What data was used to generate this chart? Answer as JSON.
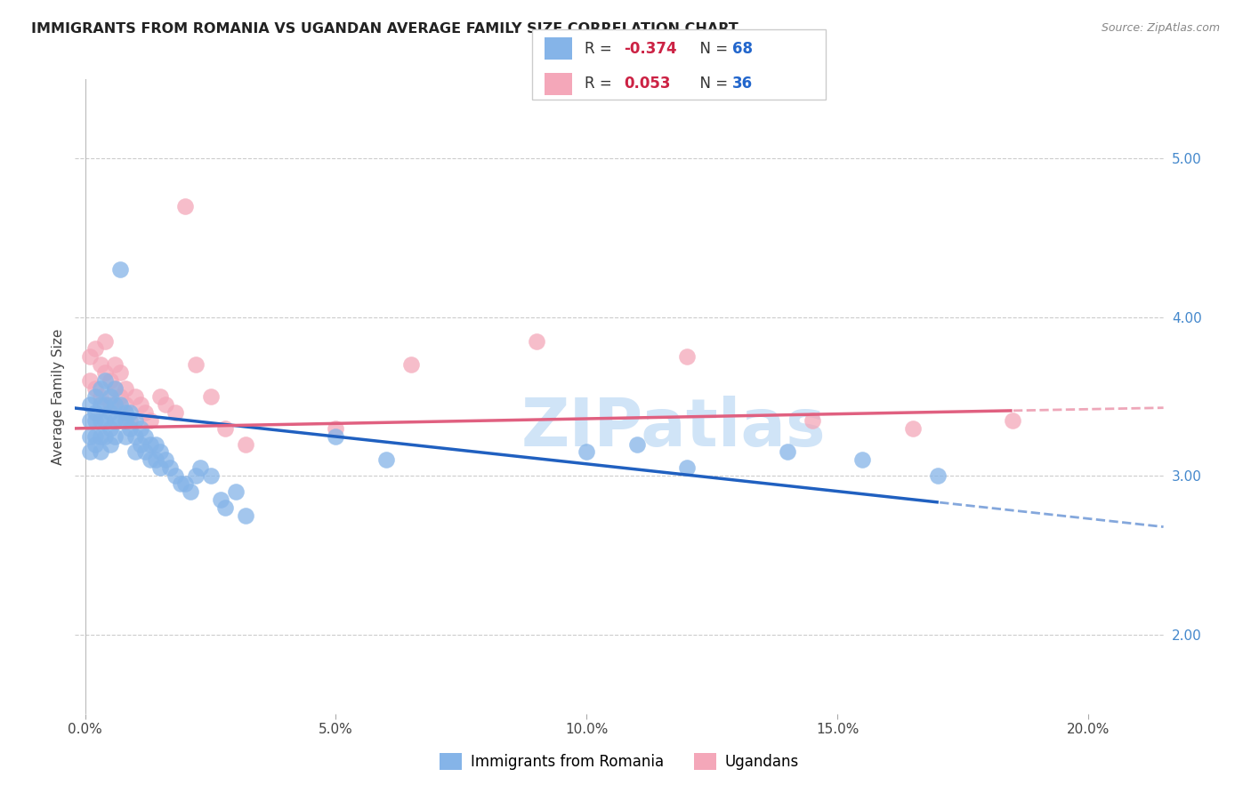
{
  "title": "IMMIGRANTS FROM ROMANIA VS UGANDAN AVERAGE FAMILY SIZE CORRELATION CHART",
  "source": "Source: ZipAtlas.com",
  "ylabel": "Average Family Size",
  "xlabel_ticks": [
    "0.0%",
    "5.0%",
    "10.0%",
    "15.0%",
    "20.0%"
  ],
  "xlabel_vals": [
    0.0,
    0.05,
    0.1,
    0.15,
    0.2
  ],
  "ylabel_ticks_right": [
    "2.00",
    "3.00",
    "4.00",
    "5.00"
  ],
  "ylabel_vals_right": [
    2.0,
    3.0,
    4.0,
    5.0
  ],
  "ylim": [
    1.5,
    5.5
  ],
  "xlim": [
    -0.002,
    0.215
  ],
  "romania_R": -0.374,
  "romania_N": 68,
  "uganda_R": 0.053,
  "uganda_N": 36,
  "romania_color": "#85b4e8",
  "uganda_color": "#f4a7b9",
  "romania_line_color": "#2060c0",
  "uganda_line_color": "#e06080",
  "legend_label_romania": "Immigrants from Romania",
  "legend_label_uganda": "Ugandans",
  "romania_scatter_x": [
    0.001,
    0.001,
    0.001,
    0.001,
    0.002,
    0.002,
    0.002,
    0.002,
    0.002,
    0.003,
    0.003,
    0.003,
    0.003,
    0.003,
    0.004,
    0.004,
    0.004,
    0.004,
    0.005,
    0.005,
    0.005,
    0.005,
    0.006,
    0.006,
    0.006,
    0.006,
    0.007,
    0.007,
    0.007,
    0.008,
    0.008,
    0.008,
    0.009,
    0.009,
    0.01,
    0.01,
    0.01,
    0.011,
    0.011,
    0.012,
    0.012,
    0.013,
    0.013,
    0.014,
    0.014,
    0.015,
    0.015,
    0.016,
    0.017,
    0.018,
    0.019,
    0.02,
    0.021,
    0.022,
    0.023,
    0.025,
    0.027,
    0.028,
    0.03,
    0.032,
    0.05,
    0.06,
    0.1,
    0.11,
    0.12,
    0.14,
    0.155,
    0.17
  ],
  "romania_scatter_y": [
    3.45,
    3.35,
    3.25,
    3.15,
    3.5,
    3.4,
    3.35,
    3.25,
    3.2,
    3.55,
    3.45,
    3.35,
    3.25,
    3.15,
    3.6,
    3.45,
    3.35,
    3.25,
    3.5,
    3.4,
    3.3,
    3.2,
    3.55,
    3.45,
    3.35,
    3.25,
    4.3,
    3.45,
    3.35,
    3.4,
    3.35,
    3.25,
    3.4,
    3.3,
    3.35,
    3.25,
    3.15,
    3.3,
    3.2,
    3.25,
    3.15,
    3.2,
    3.1,
    3.2,
    3.1,
    3.15,
    3.05,
    3.1,
    3.05,
    3.0,
    2.95,
    2.95,
    2.9,
    3.0,
    3.05,
    3.0,
    2.85,
    2.8,
    2.9,
    2.75,
    3.25,
    3.1,
    3.15,
    3.2,
    3.05,
    3.15,
    3.1,
    3.0
  ],
  "uganda_scatter_x": [
    0.001,
    0.001,
    0.002,
    0.002,
    0.003,
    0.003,
    0.004,
    0.004,
    0.005,
    0.005,
    0.006,
    0.006,
    0.007,
    0.007,
    0.008,
    0.008,
    0.009,
    0.01,
    0.011,
    0.012,
    0.013,
    0.015,
    0.016,
    0.018,
    0.02,
    0.022,
    0.025,
    0.028,
    0.032,
    0.05,
    0.065,
    0.09,
    0.12,
    0.145,
    0.165,
    0.185
  ],
  "uganda_scatter_y": [
    3.6,
    3.75,
    3.8,
    3.55,
    3.7,
    3.5,
    3.85,
    3.65,
    3.6,
    3.45,
    3.7,
    3.55,
    3.65,
    3.5,
    3.55,
    3.45,
    3.35,
    3.5,
    3.45,
    3.4,
    3.35,
    3.5,
    3.45,
    3.4,
    4.7,
    3.7,
    3.5,
    3.3,
    3.2,
    3.3,
    3.7,
    3.85,
    3.75,
    3.35,
    3.3,
    3.35
  ],
  "watermark": "ZIPatlas",
  "watermark_color": "#d0e4f7",
  "background_color": "#ffffff"
}
